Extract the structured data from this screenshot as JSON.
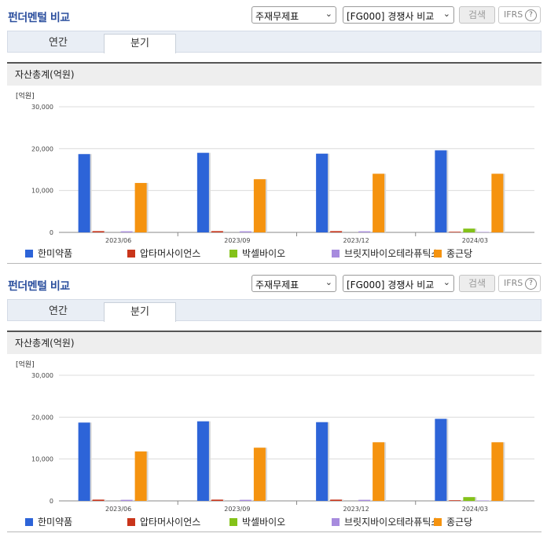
{
  "header": {
    "title": "펀더멘털 비교",
    "statement_select": "주재무제표",
    "peer_select": "[FG000] 경쟁사 비교",
    "search_label": "검색",
    "ifrs_label": "IFRS",
    "help_symbol": "?"
  },
  "tabs": [
    {
      "label": "연간",
      "active": false
    },
    {
      "label": "분기",
      "active": true
    }
  ],
  "section_title": "자산총계(억원)",
  "colors": {
    "한미약품": "#2d64d8",
    "압타머사이언스": "#c9351b",
    "박셀바이오": "#84c219",
    "브릿지바이오테라퓨틱스": "#a78bde",
    "종근당": "#f5930f"
  },
  "chart_data": [
    {
      "type": "bar",
      "title": "",
      "ylabel": "[억원]",
      "ylim": [
        0,
        30000
      ],
      "yticks": [
        "30,000",
        "20,000",
        "10,000",
        "0"
      ],
      "categories": [
        "2023/06",
        "2023/09",
        "2023/12",
        "2024/03"
      ],
      "series": [
        {
          "name": "한미약품",
          "values": [
            18700,
            19000,
            18800,
            19600
          ]
        },
        {
          "name": "압타머사이언스",
          "values": [
            300,
            300,
            300,
            150
          ]
        },
        {
          "name": "박셀바이오",
          "values": [
            0,
            0,
            0,
            900
          ]
        },
        {
          "name": "브릿지바이오테라퓨틱스",
          "values": [
            250,
            250,
            250,
            100
          ]
        },
        {
          "name": "종근당",
          "values": [
            11800,
            12700,
            14000,
            14000
          ]
        }
      ],
      "legend": [
        "한미약품",
        "압타머사이언스",
        "박셀바이오",
        "브릿지바이오테라퓨틱스",
        "종근당"
      ],
      "legend_position": "bottom"
    },
    {
      "type": "bar",
      "title": "",
      "ylabel": "[억원]",
      "ylim": [
        0,
        30000
      ],
      "yticks": [
        "30,000",
        "20,000",
        "10,000",
        "0"
      ],
      "categories": [
        "2023/06",
        "2023/09",
        "2023/12",
        "2024/03"
      ],
      "series": [
        {
          "name": "한미약품",
          "values": [
            18700,
            19000,
            18800,
            19600
          ]
        },
        {
          "name": "압타머사이언스",
          "values": [
            300,
            300,
            300,
            150
          ]
        },
        {
          "name": "박셀바이오",
          "values": [
            0,
            0,
            0,
            900
          ]
        },
        {
          "name": "브릿지바이오테라퓨틱스",
          "values": [
            250,
            250,
            250,
            100
          ]
        },
        {
          "name": "종근당",
          "values": [
            11800,
            12700,
            14000,
            14000
          ]
        }
      ],
      "legend": [
        "한미약품",
        "압타머사이언스",
        "박셀바이오",
        "브릿지바이오테라퓨틱스",
        "종근당"
      ],
      "legend_position": "bottom"
    }
  ]
}
